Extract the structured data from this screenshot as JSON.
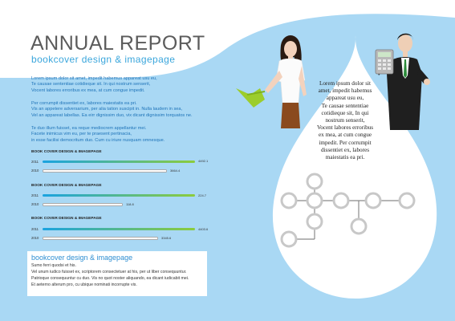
{
  "header": {
    "title": "ANNUAL REPORT",
    "subtitle": "bookcover design & imagepage"
  },
  "intro": {
    "paragraphs": [
      [
        "Lorem ipsum dolor sit amet, impedit habemus appareat usu eu,",
        "Te causae sententiae cotidieque sit. In qui nostrum senserit,",
        "Vocent labores erroribus ex mea, at cum congue impedit."
      ],
      [
        "Per corrumpit dissentiet ex, labores maiestatis ea pri.",
        "Vis an appetere adversarium, per alia tation suscipit in. Nulla laudem in sea,",
        "Vel an appareat labellas. Ea eirr dignissim duo, vix dicant dignissim torquatos ne."
      ],
      [
        "Te duo illum fuisset, ea reque mediocrem appellantur mei.",
        "Facete inimicus vim eu, per te praesent pertinacia,",
        "in esse facilisi democritum duo. Cum cu iriure nusquam omnesque."
      ]
    ]
  },
  "bar_groups": [
    {
      "title": "BOOK COVER DESIGN & IMAGEPAGE",
      "rows": [
        {
          "year": "2011",
          "value": 4492.1,
          "label": "4492.1"
        },
        {
          "year": "2010",
          "value": 3664.4,
          "label": "3664.4"
        }
      ]
    },
    {
      "title": "BOOK COVER DESIGN & IMAGEPAGE",
      "rows": [
        {
          "year": "2011",
          "value": 224.7,
          "label": "224.7"
        },
        {
          "year": "2010",
          "value": 118.8,
          "label": "118.8"
        }
      ]
    },
    {
      "title": "BOOK COVER DESIGN & IMAGEPAGE",
      "rows": [
        {
          "year": "2011",
          "value": 4403.6,
          "label": "4403.6"
        },
        {
          "year": "2010",
          "value": 3345.6,
          "label": "3345.6"
        }
      ]
    }
  ],
  "info_box": {
    "title": "bookcover design & imagepage",
    "lines": [
      "Sumo ferri quodsi et his.",
      "Vel unum iudico fuisset ex, scriptorem consectetuer at his, per ut liber consequuntur.",
      "Patrioque consequuntur cu duo. Vis no quot noster aliquando, ea dicant iudicabit mei.",
      "Et aeterno alterum pro, cu ubique nominati incorrupte vis."
    ]
  },
  "drop_text": [
    "Lorem ipsum dolor sit",
    "amet, impedit habemus",
    "appareat usu eu,",
    "Te causae sententiae",
    "cotidieque sit, In qui",
    "nostrum senserit,",
    "Vocent labores erroribus",
    "ex mea, at cum congue",
    "impedit. Per corrumpit",
    "dissentiet ex, labores",
    "maiestatis ea pri."
  ],
  "icons": {
    "woman": "woman-with-watering-can",
    "man": "businessman-with-calculator",
    "diagram": "circle-node-diagram"
  },
  "colors": {
    "background": "#a9d8f4",
    "accent_blue": "#3aa6dc",
    "bar_gradient_start": "#1aa3e0",
    "bar_gradient_end": "#8ccc3c"
  }
}
